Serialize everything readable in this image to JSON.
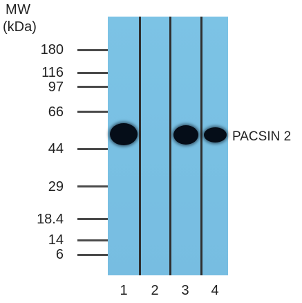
{
  "header": {
    "title": "MW",
    "unit": "(kDa)"
  },
  "markers": [
    "180",
    "116",
    "97",
    "66",
    "44",
    "29",
    "18.4",
    "14",
    "6"
  ],
  "lanes": [
    "1",
    "2",
    "3",
    "4"
  ],
  "band_label": "PACSIN 2"
}
